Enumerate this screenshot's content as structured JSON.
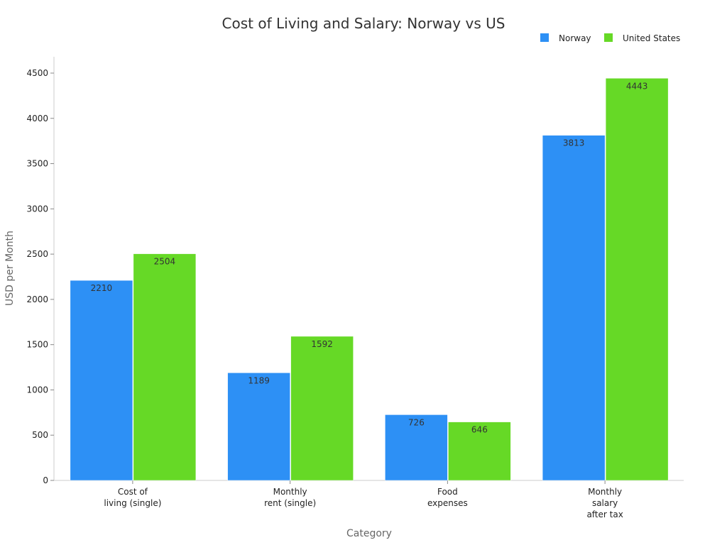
{
  "chart_data": {
    "type": "bar",
    "title": "Cost of Living and Salary: Norway vs US",
    "xlabel": "Category",
    "ylabel": "USD per Month",
    "categories": [
      [
        "Cost of",
        "living (single)"
      ],
      [
        "Monthly",
        "rent (single)"
      ],
      [
        "Food",
        "expenses"
      ],
      [
        "Monthly",
        "salary",
        "after tax"
      ]
    ],
    "series": [
      {
        "name": "Norway",
        "color": "#2d90f5",
        "values": [
          2210,
          1189,
          726,
          3813
        ]
      },
      {
        "name": "United States",
        "color": "#66d926",
        "values": [
          2504,
          1592,
          646,
          4443
        ]
      }
    ],
    "ylim": [
      0,
      4500
    ],
    "yticks": [
      0,
      500,
      1000,
      1500,
      2000,
      2500,
      3000,
      3500,
      4000,
      4500
    ],
    "grid": false,
    "legend": "top-right",
    "data_labels": true
  }
}
